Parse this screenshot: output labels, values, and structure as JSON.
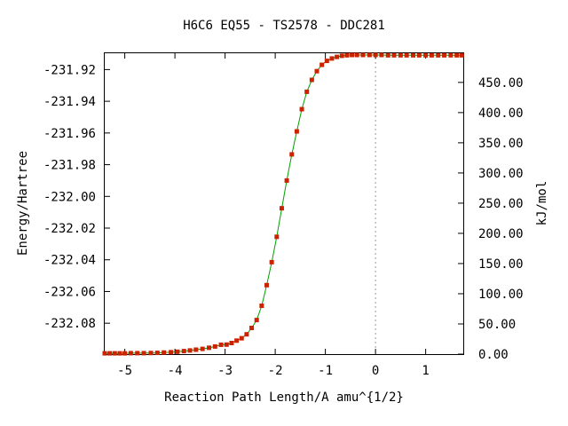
{
  "chart_data": {
    "type": "line",
    "title": "H6C6   EQ55 - TS2578 - DDC281",
    "xlabel": "Reaction Path Length/A amu^{1/2}",
    "ylabel": "Energy/Hartree",
    "ylabel_right": "kJ/mol",
    "xlim": [
      -5.4,
      1.75
    ],
    "ylim": [
      -232.0995,
      -231.9097
    ],
    "ylim_right": [
      0.0,
      498.3
    ],
    "x_ticks": [
      -5,
      -4,
      -3,
      -2,
      -1,
      0,
      1
    ],
    "x_tick_labels": [
      "-5",
      "-4",
      "-3",
      "-2",
      "-1",
      "0",
      "1"
    ],
    "y_ticks": [
      -231.92,
      -231.94,
      -231.96,
      -231.98,
      -232.0,
      -232.02,
      -232.04,
      -232.06,
      -232.08
    ],
    "y_tick_labels": [
      "-231.92",
      "-231.94",
      "-231.96",
      "-231.98",
      "-232.00",
      "-232.02",
      "-232.04",
      "-232.06",
      "-232.08"
    ],
    "y2_ticks": [
      0,
      50,
      100,
      150,
      200,
      250,
      300,
      350,
      400,
      450
    ],
    "y2_tick_labels": [
      "0.00",
      "50.00",
      "100.00",
      "150.00",
      "200.00",
      "250.00",
      "300.00",
      "350.00",
      "400.00",
      "450.00"
    ],
    "vertical_reference_x": 0,
    "grid": false,
    "colors": {
      "line": "#00a000",
      "marker": "#cc2200",
      "reference": "#999999",
      "axis": "#000000"
    },
    "series": [
      {
        "x": [
          -5.4,
          -5.3,
          -5.2,
          -5.1,
          -5.0,
          -4.88,
          -4.75,
          -4.62,
          -4.48,
          -4.35,
          -4.22,
          -4.08,
          -3.95,
          -3.82,
          -3.7,
          -3.58,
          -3.45,
          -3.32,
          -3.2,
          -3.08,
          -2.97,
          -2.87,
          -2.77,
          -2.67,
          -2.57,
          -2.47,
          -2.37,
          -2.27,
          -2.17,
          -2.07,
          -1.97,
          -1.87,
          -1.77,
          -1.67,
          -1.57,
          -1.47,
          -1.37,
          -1.27,
          -1.17,
          -1.07,
          -0.97,
          -0.87,
          -0.77,
          -0.67,
          -0.57,
          -0.47,
          -0.37,
          -0.25,
          -0.12,
          0.0,
          0.12,
          0.25,
          0.37,
          0.5,
          0.62,
          0.75,
          0.87,
          1.0,
          1.12,
          1.25,
          1.37,
          1.5,
          1.62,
          1.72
        ],
        "y": [
          -232.099,
          -232.099,
          -232.099,
          -232.099,
          -232.099,
          -232.0989,
          -232.0989,
          -232.0989,
          -232.0988,
          -232.0987,
          -232.0985,
          -232.0983,
          -232.098,
          -232.0976,
          -232.0972,
          -232.0967,
          -232.0962,
          -232.0955,
          -232.0947,
          -232.0936,
          -232.0935,
          -232.0925,
          -232.091,
          -232.0895,
          -232.087,
          -232.083,
          -232.078,
          -232.069,
          -232.056,
          -232.0415,
          -232.0255,
          -232.0075,
          -231.99,
          -231.9735,
          -231.959,
          -231.945,
          -231.934,
          -231.9265,
          -231.921,
          -231.917,
          -231.9145,
          -231.913,
          -231.912,
          -231.9113,
          -231.911,
          -231.9108,
          -231.9108,
          -231.9108,
          -231.9108,
          -231.9108,
          -231.9108,
          -231.911,
          -231.911,
          -231.911,
          -231.911,
          -231.911,
          -231.911,
          -231.911,
          -231.911,
          -231.911,
          -231.911,
          -231.911,
          -231.911,
          -231.911
        ]
      }
    ]
  }
}
